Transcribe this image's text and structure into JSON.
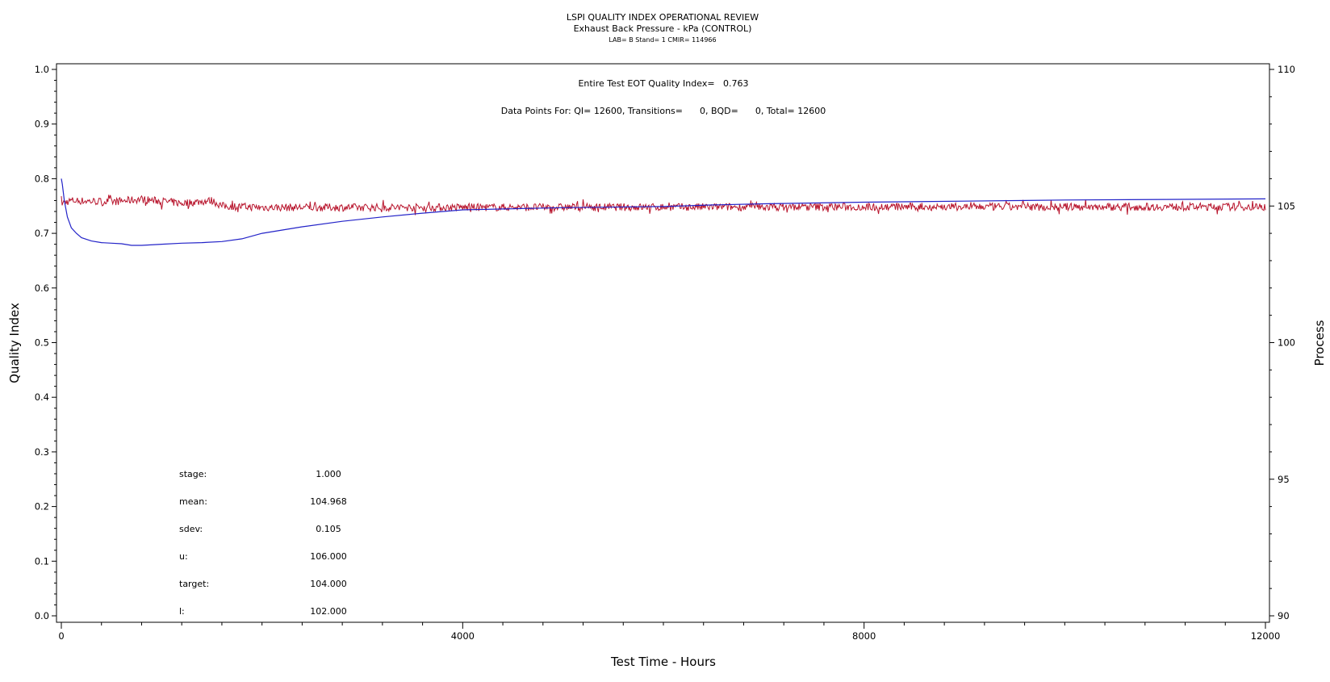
{
  "chart_data": {
    "type": "line",
    "title": "LSPI QUALITY INDEX OPERATIONAL REVIEW",
    "subtitle": "Exhaust Back Pressure - kPa (CONTROL)",
    "subtitle2": "LAB= B Stand= 1 CMIR= 114966",
    "xlabel": "Test Time - Hours",
    "ylabel_left": "Quality Index",
    "ylabel_right": "Process",
    "xlim": [
      0,
      12000
    ],
    "ylim_left": [
      0,
      1.0
    ],
    "ylim_right": [
      90,
      110
    ],
    "x_ticks": [
      0,
      4000,
      8000,
      12000
    ],
    "y_left_ticks": [
      "0.0",
      "0.1",
      "0.2",
      "0.3",
      "0.4",
      "0.5",
      "0.6",
      "0.7",
      "0.8",
      "0.9",
      "1.0"
    ],
    "y_right_ticks": [
      "90",
      "95",
      "100",
      "105",
      "110"
    ],
    "grid": false,
    "annotations": {
      "eot_line": "Entire Test EOT Quality Index=   0.763",
      "points_line": "Data Points For: QI= 12600, Transitions=      0, BQD=      0, Total= 12600"
    },
    "stats": [
      {
        "label": "stage:",
        "value": "1.000"
      },
      {
        "label": "mean:",
        "value": "104.968"
      },
      {
        "label": "sdev:",
        "value": "0.105"
      },
      {
        "label": "u:",
        "value": "106.000"
      },
      {
        "label": "target:",
        "value": "104.000"
      },
      {
        "label": "l:",
        "value": "102.000"
      }
    ],
    "series": [
      {
        "axis": "left",
        "color": "#2323c8",
        "x": [
          0,
          10,
          30,
          60,
          100,
          150,
          200,
          300,
          400,
          500,
          600,
          700,
          800,
          1000,
          1200,
          1400,
          1600,
          1800,
          2000,
          2400,
          2800,
          3200,
          3600,
          4000,
          5000,
          6000,
          6500,
          7000,
          8000,
          9000,
          10000,
          11000,
          12000
        ],
        "y": [
          0.8,
          0.79,
          0.76,
          0.73,
          0.71,
          0.7,
          0.692,
          0.686,
          0.683,
          0.682,
          0.681,
          0.678,
          0.678,
          0.68,
          0.682,
          0.683,
          0.685,
          0.69,
          0.7,
          0.712,
          0.722,
          0.73,
          0.737,
          0.743,
          0.747,
          0.749,
          0.752,
          0.754,
          0.757,
          0.759,
          0.761,
          0.762,
          0.763
        ]
      },
      {
        "axis": "right",
        "color": "#b8142c",
        "noise": 0.14,
        "x": [
          0,
          100,
          500,
          800,
          1200,
          1500,
          1600,
          2000,
          4000,
          8000,
          12000
        ],
        "y": [
          105.1,
          105.2,
          105.15,
          105.25,
          105.1,
          105.2,
          105.0,
          104.95,
          104.95,
          104.97,
          104.97
        ]
      }
    ]
  }
}
